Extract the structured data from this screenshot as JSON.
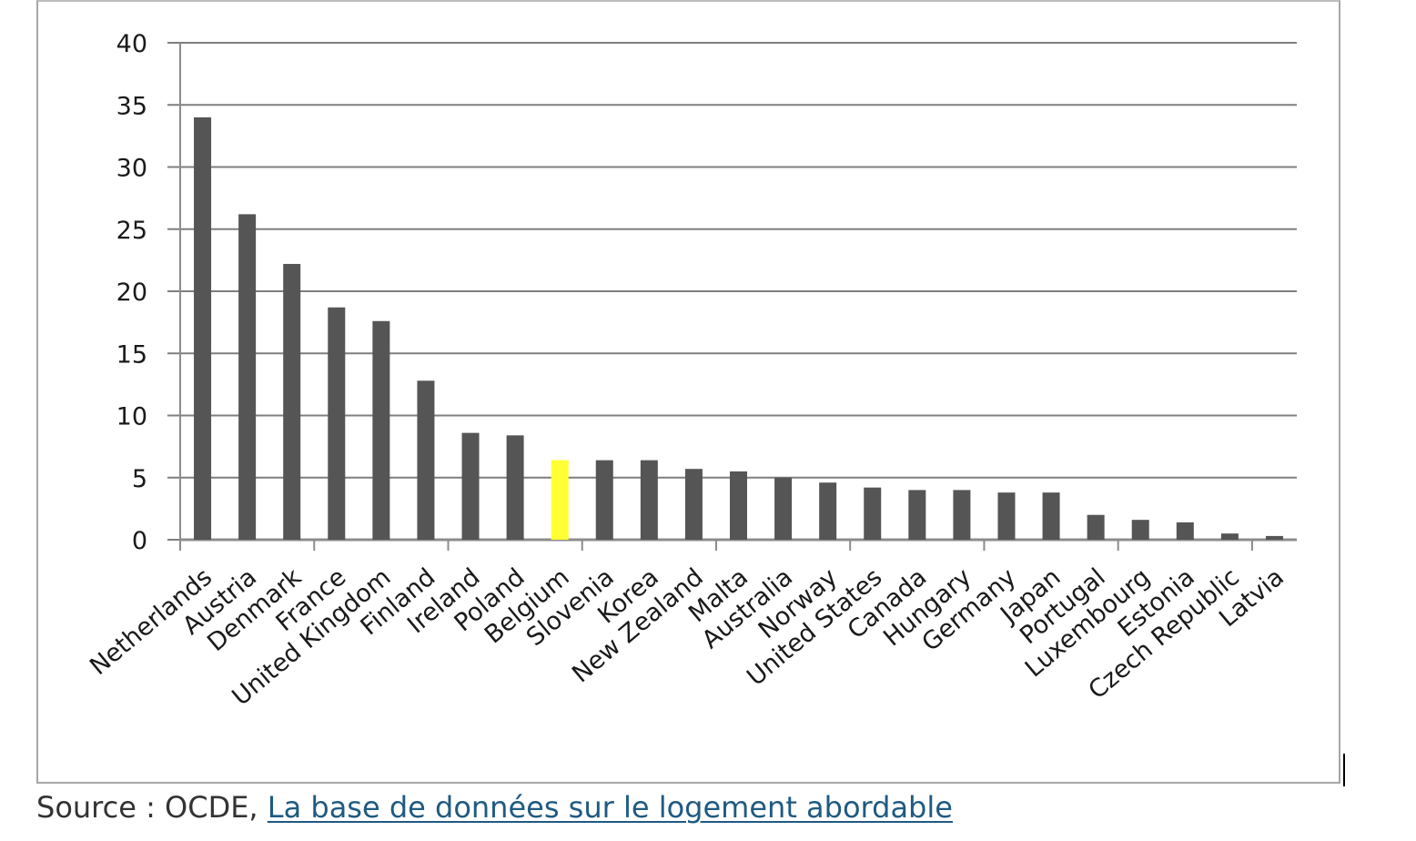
{
  "chart_data": {
    "type": "bar",
    "categories": [
      "Netherlands",
      "Austria",
      "Denmark",
      "France",
      "United Kingdom",
      "Finland",
      "Ireland",
      "Poland",
      "Belgium",
      "Slovenia",
      "Korea",
      "New Zealand",
      "Malta",
      "Australia",
      "Norway",
      "United States",
      "Canada",
      "Hungary",
      "Germany",
      "Japan",
      "Portugal",
      "Luxembourg",
      "Estonia",
      "Czech Republic",
      "Latvia"
    ],
    "values": [
      34,
      26.2,
      22.2,
      18.7,
      17.6,
      12.8,
      8.6,
      8.4,
      6.4,
      6.4,
      6.4,
      5.7,
      5.5,
      5.0,
      4.6,
      4.2,
      4.0,
      4.0,
      3.8,
      3.8,
      2.0,
      1.6,
      1.4,
      0.5,
      0.3
    ],
    "highlight_category": "Belgium",
    "title": "",
    "xlabel": "",
    "ylabel": "",
    "ylim": [
      0,
      40
    ],
    "yticks": [
      0,
      5,
      10,
      15,
      20,
      25,
      30,
      35,
      40
    ],
    "grid": true,
    "legend": "none",
    "colors": {
      "bar": "#555555",
      "highlight": "#ffff33",
      "grid": "#7f7f7f",
      "axis": "#8c8c8c"
    }
  },
  "source": {
    "prefix": "Source : OCDE, ",
    "link_text": "La base de données sur le logement abordable"
  }
}
